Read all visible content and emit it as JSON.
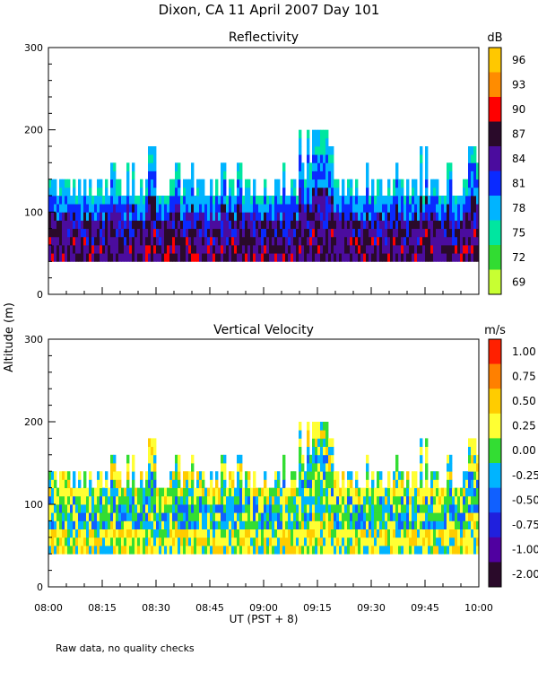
{
  "figure_title": "Dixon, CA 11 April 2007  Day 101",
  "ylabel": "Altitude (m)",
  "xlabel": "UT  (PST + 8)",
  "footnote": "Raw data, no quality checks",
  "x_ticks": [
    "08:00",
    "08:15",
    "08:30",
    "08:45",
    "09:00",
    "09:15",
    "09:30",
    "09:45",
    "10:00"
  ],
  "chart_data": [
    {
      "type": "heatmap",
      "title": "Reflectivity",
      "units": "dB",
      "xlim": [
        "08:00",
        "10:00"
      ],
      "ylim": [
        0,
        300
      ],
      "y_ticks": [
        "300",
        "200",
        "100",
        "0"
      ],
      "colorbar_labels": [
        "96",
        "93",
        "90",
        "87",
        "84",
        "81",
        "78",
        "75",
        "72",
        "69"
      ],
      "colorbar_colors": [
        "#ffc800",
        "#ff8c00",
        "#ff0000",
        "#2a0a2a",
        "#4b0c9e",
        "#0a2aff",
        "#00b4ff",
        "#00e6a0",
        "#32dc32",
        "#c8ff32"
      ],
      "echo_bottom_m": 40,
      "typical_echo_top_m": [
        120,
        140
      ],
      "max_echo_top_m": 200,
      "max_echo_top_time": "09:15"
    },
    {
      "type": "heatmap",
      "title": "Vertical Velocity",
      "units": "m/s",
      "xlim": [
        "08:00",
        "10:00"
      ],
      "ylim": [
        0,
        300
      ],
      "y_ticks": [
        "300",
        "200",
        "100",
        "0"
      ],
      "colorbar_labels": [
        "1.00",
        "0.75",
        "0.50",
        "0.25",
        "0.00",
        "-0.25",
        "-0.50",
        "-0.75",
        "-1.00",
        "-2.00"
      ],
      "colorbar_colors": [
        "#ff2000",
        "#ff8000",
        "#ffcc00",
        "#ffff33",
        "#33dd33",
        "#00b4ff",
        "#1060ff",
        "#2020dd",
        "#5000a0",
        "#2a0a2a"
      ],
      "echo_bottom_m": 40,
      "typical_echo_top_m": [
        120,
        140
      ],
      "max_echo_top_m": 200,
      "max_echo_top_time": "09:15"
    }
  ]
}
